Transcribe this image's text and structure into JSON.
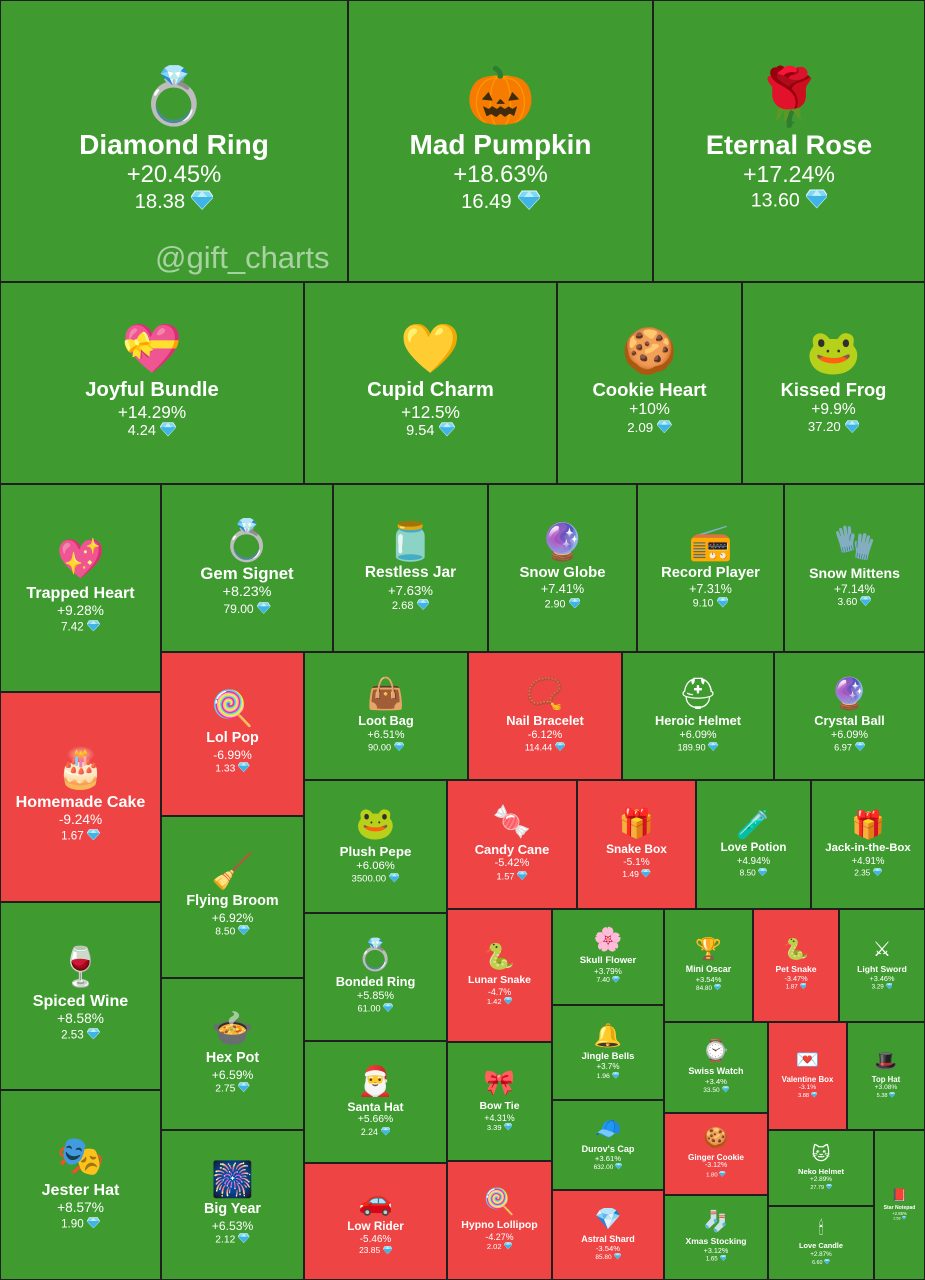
{
  "chart_data": {
    "type": "treemap",
    "title": "",
    "watermark": "@gift_charts",
    "currency_icon": "gem-icon",
    "colors": {
      "positive": "#3f9b2f",
      "negative": "#ef4444",
      "border": "#1f1f1f"
    },
    "items": [
      {
        "name": "Diamond Ring",
        "change": "+20.45%",
        "price": "18.38",
        "icon": "💍"
      },
      {
        "name": "Mad Pumpkin",
        "change": "+18.63%",
        "price": "16.49",
        "icon": "🎃"
      },
      {
        "name": "Eternal Rose",
        "change": "+17.24%",
        "price": "13.60",
        "icon": "🌹"
      },
      {
        "name": "Joyful Bundle",
        "change": "+14.29%",
        "price": "4.24",
        "icon": "💝"
      },
      {
        "name": "Cupid Charm",
        "change": "+12.5%",
        "price": "9.54",
        "icon": "💛"
      },
      {
        "name": "Cookie Heart",
        "change": "+10%",
        "price": "2.09",
        "icon": "🍪"
      },
      {
        "name": "Kissed Frog",
        "change": "+9.9%",
        "price": "37.20",
        "icon": "🐸"
      },
      {
        "name": "Trapped Heart",
        "change": "+9.28%",
        "price": "7.42",
        "icon": "💖"
      },
      {
        "name": "Gem Signet",
        "change": "+8.23%",
        "price": "79.00",
        "icon": "💍"
      },
      {
        "name": "Restless Jar",
        "change": "+7.63%",
        "price": "2.68",
        "icon": "🫙"
      },
      {
        "name": "Snow Globe",
        "change": "+7.41%",
        "price": "2.90",
        "icon": "🔮"
      },
      {
        "name": "Record Player",
        "change": "+7.31%",
        "price": "9.10",
        "icon": "📻"
      },
      {
        "name": "Snow Mittens",
        "change": "+7.14%",
        "price": "3.60",
        "icon": "🧤"
      },
      {
        "name": "Homemade Cake",
        "change": "-9.24%",
        "price": "1.67",
        "icon": "🎂"
      },
      {
        "name": "Lol Pop",
        "change": "-6.99%",
        "price": "1.33",
        "icon": "🍭"
      },
      {
        "name": "Loot Bag",
        "change": "+6.51%",
        "price": "90.00",
        "icon": "👜"
      },
      {
        "name": "Nail Bracelet",
        "change": "-6.12%",
        "price": "114.44",
        "icon": "📿"
      },
      {
        "name": "Heroic Helmet",
        "change": "+6.09%",
        "price": "189.90",
        "icon": "⛑"
      },
      {
        "name": "Crystal Ball",
        "change": "+6.09%",
        "price": "6.97",
        "icon": "🔮"
      },
      {
        "name": "Flying Broom",
        "change": "+6.92%",
        "price": "8.50",
        "icon": "🧹"
      },
      {
        "name": "Plush Pepe",
        "change": "+6.06%",
        "price": "3500.00",
        "icon": "🐸"
      },
      {
        "name": "Candy Cane",
        "change": "-5.42%",
        "price": "1.57",
        "icon": "🍬"
      },
      {
        "name": "Snake Box",
        "change": "-5.1%",
        "price": "1.49",
        "icon": "🎁"
      },
      {
        "name": "Love Potion",
        "change": "+4.94%",
        "price": "8.50",
        "icon": "🧪"
      },
      {
        "name": "Jack-in-the-Box",
        "change": "+4.91%",
        "price": "2.35",
        "icon": "🎁"
      },
      {
        "name": "Spiced Wine",
        "change": "+8.58%",
        "price": "2.53",
        "icon": "🍷"
      },
      {
        "name": "Bonded Ring",
        "change": "+5.85%",
        "price": "61.00",
        "icon": "💍"
      },
      {
        "name": "Lunar Snake",
        "change": "-4.7%",
        "price": "1.42",
        "icon": "🐍"
      },
      {
        "name": "Skull Flower",
        "change": "+3.79%",
        "price": "7.40",
        "icon": "🌸"
      },
      {
        "name": "Mini Oscar",
        "change": "+3.54%",
        "price": "84.80",
        "icon": "🏆"
      },
      {
        "name": "Pet Snake",
        "change": "-3.47%",
        "price": "1.87",
        "icon": "🐍"
      },
      {
        "name": "Light Sword",
        "change": "+3.46%",
        "price": "3.29",
        "icon": "⚔"
      },
      {
        "name": "Hex Pot",
        "change": "+6.59%",
        "price": "2.75",
        "icon": "🍲"
      },
      {
        "name": "Santa Hat",
        "change": "+5.66%",
        "price": "2.24",
        "icon": "🎅"
      },
      {
        "name": "Bow Tie",
        "change": "+4.31%",
        "price": "3.39",
        "icon": "🎀"
      },
      {
        "name": "Jingle Bells",
        "change": "+3.7%",
        "price": "1.96",
        "icon": "🔔"
      },
      {
        "name": "Swiss Watch",
        "change": "+3.4%",
        "price": "33.50",
        "icon": "⌚"
      },
      {
        "name": "Valentine Box",
        "change": "-3.1%",
        "price": "3.88",
        "icon": "💌"
      },
      {
        "name": "Top Hat",
        "change": "+3.08%",
        "price": "5.38",
        "icon": "🎩"
      },
      {
        "name": "Jester Hat",
        "change": "+8.57%",
        "price": "1.90",
        "icon": "🎭"
      },
      {
        "name": "Big Year",
        "change": "+6.53%",
        "price": "2.12",
        "icon": "🎆"
      },
      {
        "name": "Low Rider",
        "change": "-5.46%",
        "price": "23.85",
        "icon": "🚗"
      },
      {
        "name": "Hypno Lollipop",
        "change": "-4.27%",
        "price": "2.02",
        "icon": "🍭"
      },
      {
        "name": "Durov's Cap",
        "change": "+3.61%",
        "price": "632.00",
        "icon": "🧢"
      },
      {
        "name": "Ginger Cookie",
        "change": "-3.12%",
        "price": "1.80",
        "icon": "🍪"
      },
      {
        "name": "Neko Helmet",
        "change": "+2.89%",
        "price": "27.79",
        "icon": "🐱"
      },
      {
        "name": "Star Notepad",
        "change": "+2.85%",
        "price": "2.58",
        "icon": "📕"
      },
      {
        "name": "Astral Shard",
        "change": "-3.54%",
        "price": "85.80",
        "icon": "💎"
      },
      {
        "name": "Xmas Stocking",
        "change": "+3.12%",
        "price": "1.65",
        "icon": "🧦"
      },
      {
        "name": "Love Candle",
        "change": "+2.87%",
        "price": "6.60",
        "icon": "🕯"
      }
    ]
  }
}
